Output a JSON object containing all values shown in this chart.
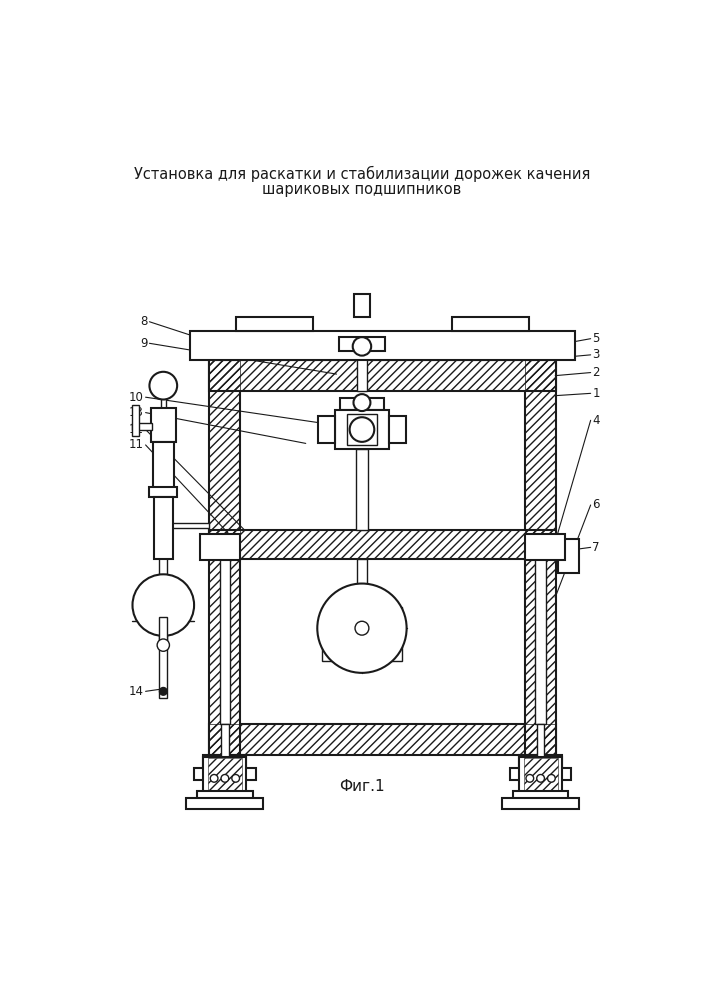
{
  "title_line1": "Установка для раскатки и стабилизации дорожек качения",
  "title_line2": "шариковых подшипников",
  "caption": "Фиг.1",
  "bg_color": "#ffffff",
  "line_color": "#1a1a1a",
  "title_fontsize": 10.5,
  "caption_fontsize": 11
}
